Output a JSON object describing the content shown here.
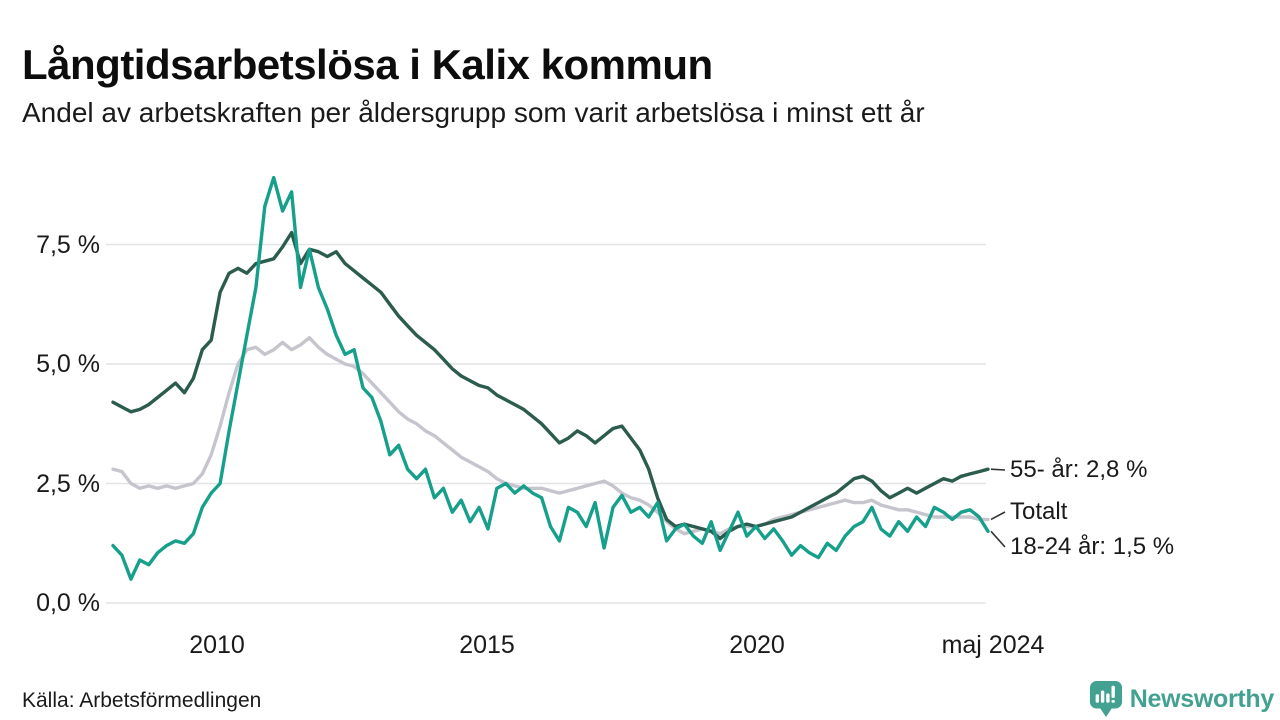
{
  "header": {
    "title": "Långtidsarbetslösa i Kalix kommun",
    "subtitle": "Andel av arbetskraften per åldersgrupp som varit arbetslösa i minst ett år"
  },
  "footer": {
    "source": "Källa: Arbetsförmedlingen",
    "brand": "Newsworthy"
  },
  "colors": {
    "grid": "#e4e3e7",
    "leader": "#333333",
    "brand": "#43a191",
    "icon_bars": "#ffffff"
  },
  "chart_data": {
    "type": "line",
    "title": "Långtidsarbetslösa i Kalix kommun",
    "subtitle": "Andel av arbetskraften per åldersgrupp som varit arbetslösa i minst ett år",
    "x_start": 2008.0,
    "x_end": 2024.37,
    "x_ticks": [
      {
        "value": 2010,
        "label": "2010"
      },
      {
        "value": 2015,
        "label": "2015"
      },
      {
        "value": 2020,
        "label": "2020"
      },
      {
        "value": 2024.37,
        "label": "maj 2024"
      }
    ],
    "y_ticks": [
      {
        "value": 0.0,
        "label": "0,0 %"
      },
      {
        "value": 2.5,
        "label": "2,5 %"
      },
      {
        "value": 5.0,
        "label": "5,0 %"
      },
      {
        "value": 7.5,
        "label": "7,5 %"
      }
    ],
    "ylim": [
      0,
      9.2
    ],
    "grid": "horizontal",
    "legend_position": "end-of-line-labels",
    "series": [
      {
        "name": "55- år",
        "end_label": "55- år: 2,8 %",
        "last_value": 2.8,
        "color": "#2b5c4e",
        "values": [
          4.2,
          4.1,
          4.0,
          4.05,
          4.15,
          4.3,
          4.45,
          4.6,
          4.4,
          4.7,
          5.3,
          5.5,
          6.5,
          6.9,
          7.0,
          6.9,
          7.1,
          7.15,
          7.2,
          7.45,
          7.75,
          7.1,
          7.4,
          7.35,
          7.25,
          7.35,
          7.1,
          6.95,
          6.8,
          6.65,
          6.5,
          6.25,
          6.0,
          5.8,
          5.6,
          5.45,
          5.3,
          5.1,
          4.9,
          4.75,
          4.65,
          4.55,
          4.5,
          4.35,
          4.25,
          4.15,
          4.05,
          3.9,
          3.75,
          3.55,
          3.35,
          3.45,
          3.6,
          3.5,
          3.35,
          3.5,
          3.65,
          3.7,
          3.45,
          3.2,
          2.8,
          2.2,
          1.75,
          1.6,
          1.65,
          1.6,
          1.55,
          1.5,
          1.35,
          1.5,
          1.6,
          1.65,
          1.6,
          1.65,
          1.7,
          1.75,
          1.8,
          1.9,
          2.0,
          2.1,
          2.2,
          2.3,
          2.45,
          2.6,
          2.65,
          2.55,
          2.35,
          2.2,
          2.3,
          2.4,
          2.3,
          2.4,
          2.5,
          2.6,
          2.55,
          2.65,
          2.7,
          2.75,
          2.8
        ]
      },
      {
        "name": "Totalt",
        "end_label": "Totalt",
        "last_value": 1.75,
        "color": "#c6c5ce",
        "values": [
          2.8,
          2.75,
          2.5,
          2.4,
          2.45,
          2.4,
          2.45,
          2.4,
          2.45,
          2.5,
          2.7,
          3.1,
          3.7,
          4.4,
          5.0,
          5.3,
          5.35,
          5.2,
          5.3,
          5.45,
          5.3,
          5.4,
          5.55,
          5.35,
          5.2,
          5.1,
          5.0,
          4.95,
          4.8,
          4.6,
          4.4,
          4.2,
          4.0,
          3.85,
          3.75,
          3.6,
          3.5,
          3.35,
          3.2,
          3.05,
          2.95,
          2.85,
          2.75,
          2.6,
          2.5,
          2.45,
          2.4,
          2.4,
          2.4,
          2.35,
          2.3,
          2.35,
          2.4,
          2.45,
          2.5,
          2.55,
          2.45,
          2.3,
          2.2,
          2.15,
          2.05,
          1.9,
          1.7,
          1.55,
          1.45,
          1.5,
          1.55,
          1.5,
          1.45,
          1.55,
          1.6,
          1.6,
          1.6,
          1.65,
          1.75,
          1.8,
          1.85,
          1.9,
          1.95,
          2.0,
          2.05,
          2.1,
          2.15,
          2.1,
          2.1,
          2.15,
          2.05,
          2.0,
          1.95,
          1.95,
          1.9,
          1.85,
          1.8,
          1.8,
          1.8,
          1.8,
          1.8,
          1.75,
          1.75
        ]
      },
      {
        "name": "18-24 år",
        "end_label": "18-24 år: 1,5 %",
        "last_value": 1.5,
        "color": "#16a08c",
        "values": [
          1.2,
          1.0,
          0.5,
          0.9,
          0.8,
          1.05,
          1.2,
          1.3,
          1.25,
          1.45,
          2.0,
          2.3,
          2.5,
          3.6,
          4.6,
          5.6,
          6.6,
          8.3,
          8.9,
          8.2,
          8.6,
          6.6,
          7.4,
          6.6,
          6.15,
          5.6,
          5.2,
          5.3,
          4.5,
          4.3,
          3.8,
          3.1,
          3.3,
          2.8,
          2.6,
          2.8,
          2.2,
          2.4,
          1.9,
          2.15,
          1.7,
          2.0,
          1.55,
          2.4,
          2.5,
          2.3,
          2.45,
          2.3,
          2.2,
          1.6,
          1.3,
          2.0,
          1.9,
          1.6,
          2.1,
          1.15,
          2.0,
          2.25,
          1.9,
          2.0,
          1.8,
          2.1,
          1.3,
          1.55,
          1.65,
          1.4,
          1.25,
          1.7,
          1.1,
          1.5,
          1.9,
          1.4,
          1.6,
          1.35,
          1.55,
          1.3,
          1.0,
          1.2,
          1.05,
          0.95,
          1.25,
          1.1,
          1.4,
          1.6,
          1.7,
          2.0,
          1.55,
          1.4,
          1.7,
          1.5,
          1.8,
          1.6,
          2.0,
          1.9,
          1.75,
          1.9,
          1.95,
          1.8,
          1.5
        ]
      }
    ]
  }
}
